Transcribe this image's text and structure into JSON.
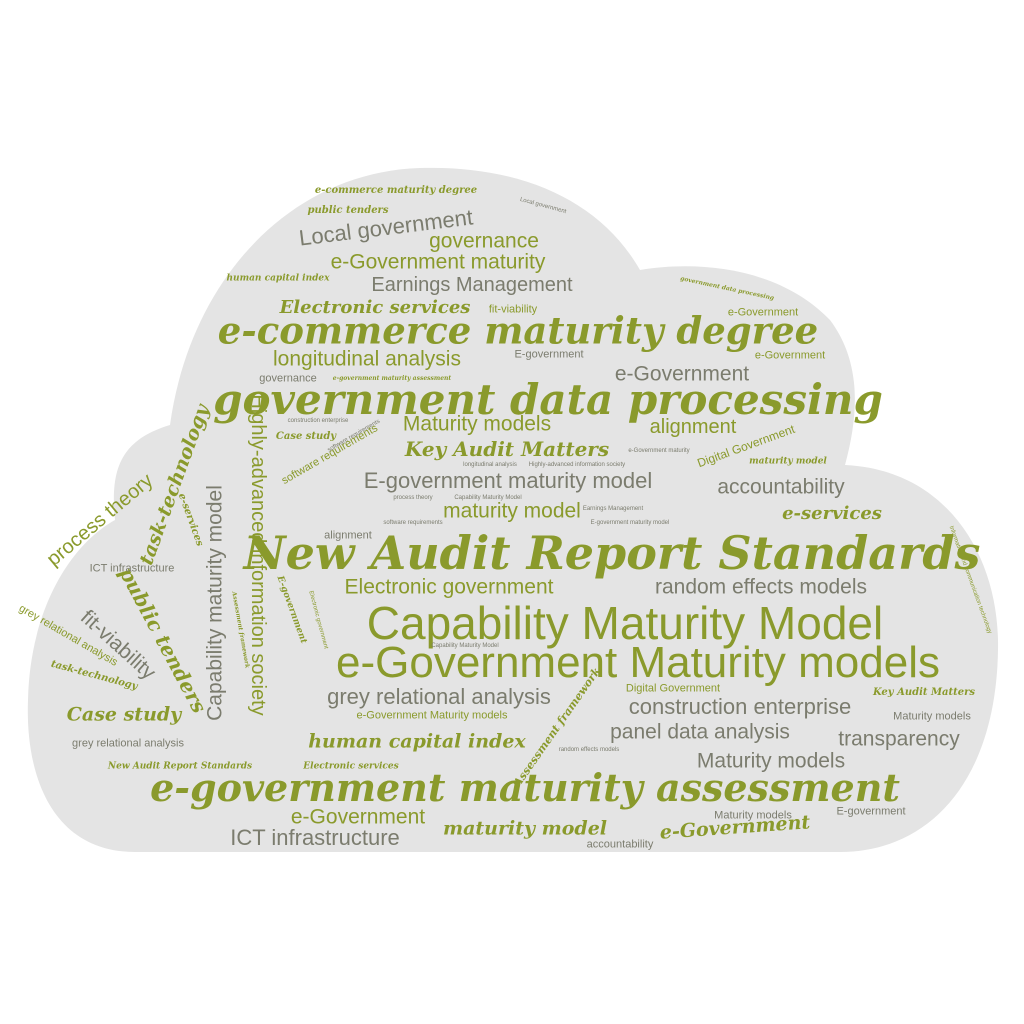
{
  "background_color": "#ffffff",
  "cloud_fill": "#e4e4e4",
  "palette": {
    "primary": "#8a9a2c",
    "dark": "#6f7a2c",
    "grey": "#7b7c6e"
  },
  "words": [
    "e-commerce maturity degree",
    "public tenders",
    "Local government",
    "governance",
    "e-Government maturity",
    "human capital index",
    "Earnings Management",
    "Electronic services",
    "fit-viability",
    "e-commerce maturity degree",
    "e-Government",
    "longitudinal analysis",
    "E-government",
    "e-Government",
    "governance",
    "e-government maturity assessment",
    "e-Government",
    "government data processing",
    "Highly-advanced information society",
    "Maturity models",
    "alignment",
    "Key Audit Matters",
    "Case study",
    "task-technology",
    "process theory",
    "E-government maturity model",
    "accountability",
    "Digital Government",
    "maturity model",
    "Information and communication technology",
    "e-services",
    "New Audit Report Standards",
    "Capability maturity model",
    "e-services",
    "ICT infrastructure",
    "Electronic government",
    "random effects models",
    "Capability Maturity Model",
    "transparency",
    "fit-viability",
    "public tenders",
    "e-Government Maturity models",
    "task-technology",
    "grey relational analysis",
    "Digital Government",
    "Key Audit Matters",
    "Case study",
    "construction enterprise",
    "e-Government Maturity models",
    "Maturity models",
    "human capital index",
    "panel data analysis",
    "transparency",
    "grey relational analysis",
    "New Audit Report Standards",
    "Electronic services",
    "Maturity models",
    "e-government maturity assessment",
    "e-Government",
    "Maturity models",
    "E-government",
    "maturity model",
    "e-Government",
    "ICT infrastructure",
    "accountability",
    "Assessment framework",
    "software requirements",
    "alignment",
    "Information and communication technology",
    "construction enterprise",
    "software requirements",
    "process theory",
    "Capability Maturity Model",
    "Earnings Management",
    "e-Government maturity",
    "Highly-advanced information society",
    "longitudinal analysis",
    "Electronic government",
    "random effects models",
    "e-Government",
    "E-government maturity model",
    "government data processing",
    "Local government",
    "Assessment framework",
    "panel data analysis",
    "Capability maturity model"
  ]
}
